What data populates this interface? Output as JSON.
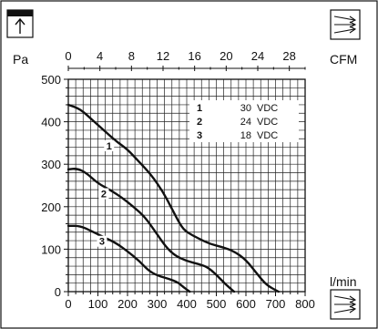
{
  "chart_data": {
    "type": "line",
    "x_unit_bottom": "l/min",
    "x_unit_top": "CFM",
    "y_unit": "Pa",
    "bottom_ticks": [
      "0",
      "100",
      "200",
      "300",
      "400",
      "500",
      "600",
      "700",
      "800"
    ],
    "top_ticks": [
      "0",
      "4",
      "8",
      "12",
      "16",
      "20",
      "24",
      "28"
    ],
    "y_ticks": [
      "0",
      "100",
      "200",
      "300",
      "400",
      "500"
    ],
    "xlim": [
      0,
      800
    ],
    "ylim": [
      0,
      500
    ],
    "grid": true,
    "legend_position": "top-right",
    "legend": [
      {
        "num": "1",
        "value": "30",
        "unit": "VDC"
      },
      {
        "num": "2",
        "value": "24",
        "unit": "VDC"
      },
      {
        "num": "3",
        "value": "18",
        "unit": "VDC"
      }
    ],
    "series": [
      {
        "name": "1",
        "points": [
          [
            0,
            440
          ],
          [
            40,
            430
          ],
          [
            80,
            405
          ],
          [
            120,
            380
          ],
          [
            160,
            355
          ],
          [
            200,
            335
          ],
          [
            240,
            305
          ],
          [
            280,
            275
          ],
          [
            320,
            235
          ],
          [
            350,
            195
          ],
          [
            380,
            155
          ],
          [
            400,
            140
          ],
          [
            440,
            125
          ],
          [
            480,
            112
          ],
          [
            520,
            105
          ],
          [
            560,
            95
          ],
          [
            600,
            75
          ],
          [
            640,
            40
          ],
          [
            670,
            15
          ],
          [
            710,
            0
          ]
        ]
      },
      {
        "name": "2",
        "points": [
          [
            0,
            288
          ],
          [
            30,
            290
          ],
          [
            60,
            280
          ],
          [
            100,
            255
          ],
          [
            140,
            240
          ],
          [
            180,
            222
          ],
          [
            220,
            200
          ],
          [
            260,
            175
          ],
          [
            300,
            135
          ],
          [
            330,
            105
          ],
          [
            360,
            85
          ],
          [
            400,
            72
          ],
          [
            440,
            65
          ],
          [
            470,
            58
          ],
          [
            500,
            40
          ],
          [
            530,
            18
          ],
          [
            560,
            0
          ]
        ]
      },
      {
        "name": "3",
        "points": [
          [
            0,
            155
          ],
          [
            40,
            155
          ],
          [
            80,
            142
          ],
          [
            120,
            128
          ],
          [
            160,
            115
          ],
          [
            200,
            95
          ],
          [
            240,
            72
          ],
          [
            270,
            50
          ],
          [
            300,
            38
          ],
          [
            340,
            30
          ],
          [
            370,
            22
          ],
          [
            390,
            10
          ],
          [
            410,
            0
          ]
        ]
      }
    ]
  },
  "icons": {
    "top_left": "airflow-direction-icon",
    "top_right": "cfm-arrows-icon",
    "bottom_right": "lmin-arrows-icon"
  }
}
